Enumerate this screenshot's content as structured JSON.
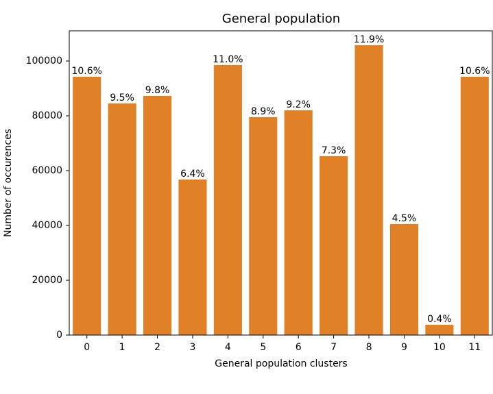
{
  "chart_data": {
    "type": "bar",
    "title": "General population",
    "x_label": "General population clusters",
    "y_label": "Number of occurences",
    "categories": [
      "0",
      "1",
      "2",
      "3",
      "4",
      "5",
      "6",
      "7",
      "8",
      "9",
      "10",
      "11"
    ],
    "values": [
      94250,
      84500,
      87250,
      56750,
      98500,
      79500,
      82000,
      65250,
      105750,
      40500,
      3750,
      94250
    ],
    "percent_labels": [
      "10.6%",
      "9.5%",
      "9.8%",
      "6.4%",
      "11.0%",
      "8.9%",
      "9.2%",
      "7.3%",
      "11.9%",
      "4.5%",
      "0.4%",
      "10.6%"
    ],
    "color": "#e08128",
    "ylim": [
      0,
      111000
    ],
    "yticks": [
      0,
      20000,
      40000,
      60000,
      80000,
      100000
    ],
    "grid": false
  }
}
